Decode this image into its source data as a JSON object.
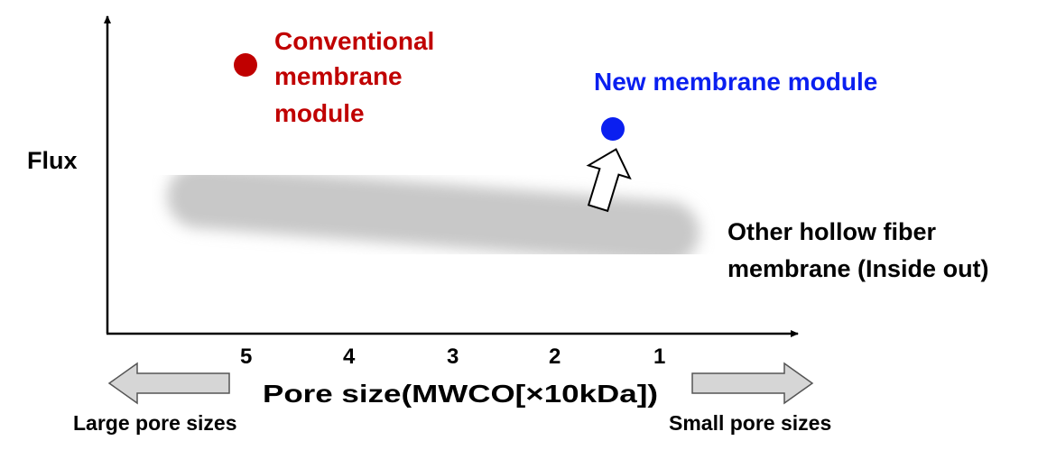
{
  "chart_data": {
    "type": "scatter",
    "xlabel": "Pore size(MWCO[×10kDa])",
    "ylabel": "Flux",
    "x_ticks": [
      "5",
      "4",
      "3",
      "2",
      "1"
    ],
    "x_direction": "reversed",
    "x_direction_labels": {
      "left": "Large pore sizes",
      "right": "Small pore sizes"
    },
    "band": {
      "label_lines": [
        "Other hollow fiber",
        "membrane (Inside out)"
      ],
      "color": "#c8c8c8"
    },
    "points": [
      {
        "label_lines": [
          "Conventional",
          "membrane",
          "module"
        ],
        "color": "#c00000"
      },
      {
        "label_lines": [
          "New membrane module"
        ],
        "color": "#0a1ff0"
      }
    ],
    "grid": false
  }
}
